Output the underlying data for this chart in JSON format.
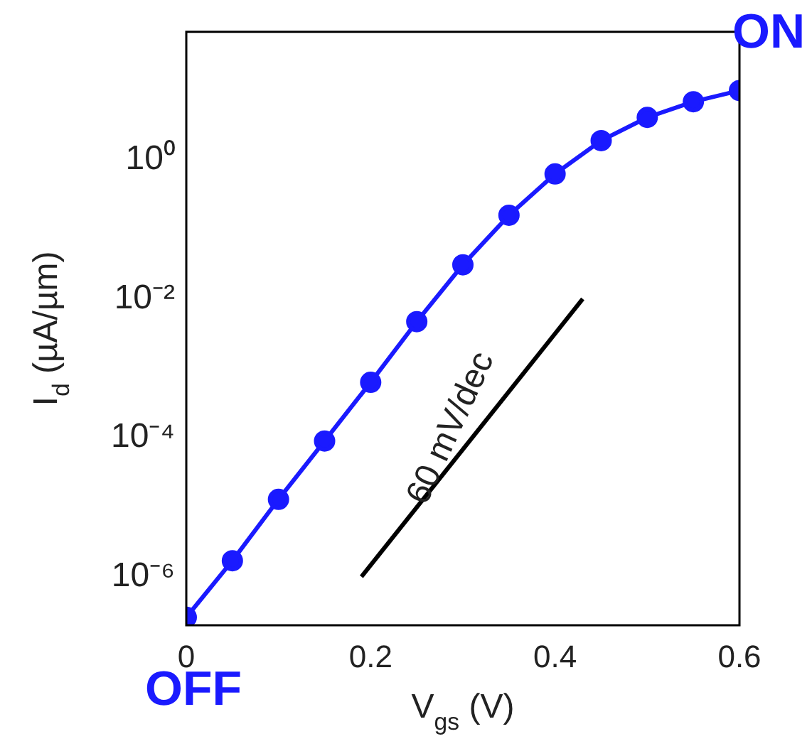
{
  "chart_data": {
    "type": "line",
    "xlabel": "V$_{gs}$ (V)",
    "ylabel": "I$_{d}$ (µA/µm)",
    "x": [
      0,
      0.05,
      0.1,
      0.15,
      0.2,
      0.25,
      0.3,
      0.35,
      0.4,
      0.45,
      0.5,
      0.55,
      0.6
    ],
    "series": [
      {
        "color": "#1a1aff",
        "values": [
          2.6e-07,
          1.7e-06,
          1.3e-05,
          9e-05,
          0.00063,
          0.0047,
          0.031,
          0.16,
          0.63,
          1.9,
          4.1,
          6.9,
          10
        ]
      },
      {
        "type": "line",
        "color": "#000000",
        "x": [
          0.19,
          0.43
        ],
        "values": [
          1e-06,
          0.01
        ],
        "marker": "none"
      }
    ],
    "log": "y",
    "marker": "circle",
    "line_style": "solid",
    "grid": false,
    "legend": false,
    "xlim": [
      0,
      0.6
    ],
    "xticks": [
      0,
      0.2,
      0.4,
      0.6
    ],
    "ylim": [
      2e-07,
      70
    ],
    "yticks": [
      {
        "value": 1e-06,
        "label": "10⁻⁶"
      },
      {
        "value": 0.0001,
        "label": "10⁻⁴"
      },
      {
        "value": 0.01,
        "label": "10⁻²"
      },
      {
        "value": 1,
        "label": "10⁰"
      }
    ],
    "annotations": [
      {
        "text": "60 mV/dec",
        "x": 0.31,
        "y": 0.0001
      },
      {
        "text": "OFF",
        "x": 0,
        "y": 2.6e-07
      },
      {
        "text": "ON",
        "x": 0.6,
        "y": 10
      }
    ]
  }
}
